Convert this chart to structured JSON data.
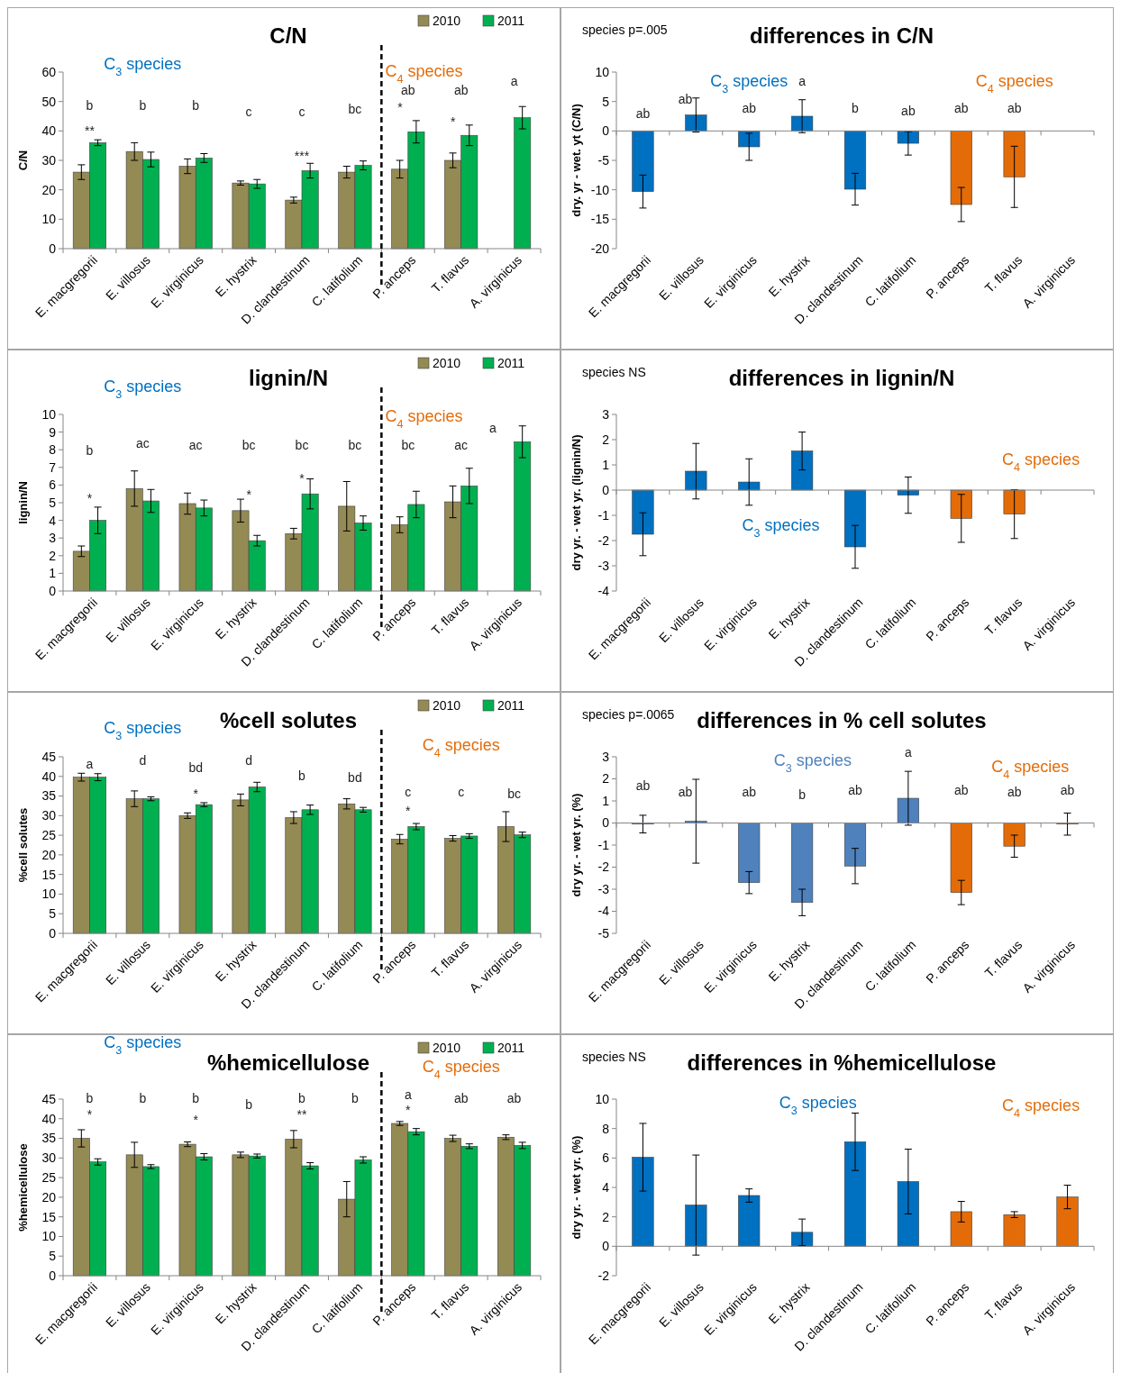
{
  "chart_data": [
    {
      "type": "bar",
      "title": "C/N",
      "ylabel": "C/N",
      "legend": "top right",
      "categories": [
        "E. macgregorii",
        "E. villosus",
        "E. virginicus",
        "E. hystrix",
        "D. clandestinum",
        "C. latifolium",
        "P. anceps",
        "T. flavus",
        "A. virginicus"
      ],
      "ylim": [
        0,
        60
      ],
      "yticks": [
        0,
        10,
        20,
        30,
        40,
        50,
        60
      ],
      "series": [
        {
          "name": "2010",
          "color": "#948a54",
          "values": [
            26,
            33,
            28,
            22.3,
            16.5,
            26,
            27,
            30,
            null
          ],
          "errors": [
            2.5,
            3,
            2.5,
            0.7,
            1,
            2,
            3,
            2.5,
            null
          ]
        },
        {
          "name": "2011",
          "color": "#00b050",
          "values": [
            36,
            30.3,
            30.8,
            22,
            26.5,
            28.3,
            39.7,
            38.5,
            44.5
          ],
          "errors": [
            1,
            2.5,
            1.5,
            1.5,
            2.5,
            1.5,
            3.8,
            3.5,
            3.8
          ]
        }
      ],
      "annotations": [
        "C$_{3}$ species",
        "C$_{4}$ species",
        "b",
        "b",
        "b",
        "c",
        "c",
        "bc",
        "ab",
        "ab",
        "a",
        "**",
        "***",
        "*",
        "*"
      ]
    },
    {
      "type": "bar",
      "title": "differences in C/N",
      "ylabel": "dry. yr - wet. yt (C/N)",
      "categories": [
        "E. macgregorii",
        "E. villosus",
        "E. virginicus",
        "E. hystrix",
        "D. clandestinum",
        "C. latifolium",
        "P. anceps",
        "T. flavus",
        "A. virginicus"
      ],
      "ylim": [
        -20,
        10
      ],
      "yticks": [
        -20,
        -15,
        -10,
        -5,
        0,
        5,
        10
      ],
      "series": [
        {
          "colors": [
            "#0070c0",
            "#0070c0",
            "#0070c0",
            "#0070c0",
            "#0070c0",
            "#0070c0",
            "#e36c09",
            "#e36c09",
            "#e36c09"
          ],
          "values": [
            -10.3,
            2.7,
            -2.7,
            2.5,
            -9.9,
            -2.1,
            -12.5,
            -7.8,
            null
          ],
          "errors": [
            2.8,
            2.9,
            2.3,
            2.8,
            2.7,
            2,
            2.9,
            5.2,
            null
          ]
        }
      ],
      "annotations": [
        "species p=.005",
        "C$_{3}$ species",
        "C$_{4}$ species",
        "ab",
        "ab",
        "ab",
        "a",
        "b",
        "ab",
        "ab",
        "ab"
      ]
    },
    {
      "type": "bar",
      "title": "lignin/N",
      "ylabel": "lignin/N",
      "legend": "top right",
      "categories": [
        "E. macgregorii",
        "E. villosus",
        "E. virginicus",
        "E. hystrix",
        "D. clandestinum",
        "C. latifolium",
        "P. anceps",
        "T. flavus",
        "A. virginicus"
      ],
      "ylim": [
        0,
        10
      ],
      "yticks": [
        0,
        1,
        2,
        3,
        4,
        5,
        6,
        7,
        8,
        9,
        10
      ],
      "series": [
        {
          "name": "2010",
          "color": "#948a54",
          "values": [
            2.25,
            5.8,
            4.95,
            4.55,
            3.25,
            4.8,
            3.75,
            5.05,
            null
          ],
          "errors": [
            0.3,
            1,
            0.6,
            0.65,
            0.3,
            1.4,
            0.45,
            0.9,
            null
          ]
        },
        {
          "name": "2011",
          "color": "#00b050",
          "values": [
            4,
            5.1,
            4.7,
            2.85,
            5.5,
            3.85,
            4.9,
            5.95,
            8.45
          ],
          "errors": [
            0.75,
            0.65,
            0.45,
            0.3,
            0.85,
            0.4,
            0.75,
            1,
            0.9
          ]
        }
      ],
      "annotations": [
        "C$_{3}$ species",
        "C$_{4}$ species",
        "b",
        "ac",
        "ac",
        "bc",
        "bc",
        "bc",
        "bc",
        "ac",
        "a",
        "*",
        "*",
        "*"
      ]
    },
    {
      "type": "bar",
      "title": "differences in lignin/N",
      "ylabel": "dry yr. - wet yr. (lignin/N)",
      "categories": [
        "E. macgregorii",
        "E. villosus",
        "E. virginicus",
        "E. hystrix",
        "D. clandestinum",
        "C. latifolium",
        "P. anceps",
        "T. flavus",
        "A. virginicus"
      ],
      "ylim": [
        -4,
        3
      ],
      "yticks": [
        -4,
        -3,
        -2,
        -1,
        0,
        1,
        2,
        3
      ],
      "series": [
        {
          "colors": [
            "#0070c0",
            "#0070c0",
            "#0070c0",
            "#0070c0",
            "#0070c0",
            "#0070c0",
            "#e36c09",
            "#e36c09",
            "#e36c09"
          ],
          "values": [
            -1.75,
            0.75,
            0.32,
            1.55,
            -2.25,
            -0.2,
            -1.12,
            -0.95,
            null
          ],
          "errors": [
            0.85,
            1.1,
            0.92,
            0.75,
            0.85,
            0.72,
            0.95,
            0.97,
            null
          ]
        }
      ],
      "annotations": [
        "species NS",
        "C$_{3}$ species",
        "C$_{4}$ species"
      ]
    },
    {
      "type": "bar",
      "title": "%cell solutes",
      "ylabel": "%cell solutes",
      "legend": "top right",
      "categories": [
        "E. macgregorii",
        "E. villosus",
        "E. virginicus",
        "E. hystrix",
        "D. clandestinum",
        "C. latifolium",
        "P. anceps",
        "T. flavus",
        "A. virginicus"
      ],
      "ylim": [
        0,
        45
      ],
      "yticks": [
        0,
        5,
        10,
        15,
        20,
        25,
        30,
        35,
        40,
        45
      ],
      "series": [
        {
          "name": "2010",
          "color": "#948a54",
          "values": [
            39.8,
            34.3,
            30,
            34,
            29.5,
            33,
            24,
            24.2,
            27.2
          ],
          "errors": [
            1,
            2,
            0.7,
            1.5,
            1.5,
            1.3,
            1.2,
            0.7,
            3.8
          ]
        },
        {
          "name": "2011",
          "color": "#00b050",
          "values": [
            39.8,
            34.3,
            32.8,
            37.3,
            31.5,
            31.5,
            27.2,
            24.8,
            25.1
          ],
          "errors": [
            0.9,
            0.5,
            0.5,
            1.2,
            1.2,
            0.6,
            0.8,
            0.6,
            0.7
          ]
        }
      ],
      "annotations": [
        "C$_{3}$ species",
        "C$_{4}$ species",
        "a",
        "d",
        "bd",
        "d",
        "b",
        "bd",
        "c",
        "c",
        "bc",
        "*",
        "*"
      ]
    },
    {
      "type": "bar",
      "title": "differences in % cell solutes",
      "ylabel": "dry yr. - wet yr. (%)",
      "categories": [
        "E. macgregorii",
        "E. villosus",
        "E. virginicus",
        "E. hystrix",
        "D. clandestinum",
        "C. latifolium",
        "P. anceps",
        "T. flavus",
        "A. virginicus"
      ],
      "ylim": [
        -5,
        3
      ],
      "yticks": [
        -5,
        -4,
        -3,
        -2,
        -1,
        0,
        1,
        2,
        3
      ],
      "series": [
        {
          "colors": [
            "#4f81bd",
            "#4f81bd",
            "#4f81bd",
            "#4f81bd",
            "#4f81bd",
            "#4f81bd",
            "#e36c09",
            "#e36c09",
            "#e36c09"
          ],
          "values": [
            -0.05,
            0.08,
            -2.7,
            -3.6,
            -1.95,
            1.12,
            -3.15,
            -1.05,
            -0.05
          ],
          "errors": [
            0.4,
            1.9,
            0.5,
            0.6,
            0.8,
            1.22,
            0.55,
            0.5,
            0.5
          ]
        }
      ],
      "annotations": [
        "species p=.0065",
        "C$_{3}$ species",
        "C$_{4}$ species",
        "ab",
        "ab",
        "ab",
        "b",
        "ab",
        "a",
        "ab",
        "ab",
        "ab"
      ]
    },
    {
      "type": "bar",
      "title": "%hemicellulose",
      "ylabel": "%hemicellulose",
      "legend": "top right",
      "categories": [
        "E. macgregorii",
        "E. villosus",
        "E. virginicus",
        "E. hystrix",
        "D. clandestinum",
        "C. latifolium",
        "P. anceps",
        "T. flavus",
        "A. virginicus"
      ],
      "ylim": [
        0,
        45
      ],
      "yticks": [
        0,
        5,
        10,
        15,
        20,
        25,
        30,
        35,
        40,
        45
      ],
      "series": [
        {
          "name": "2010",
          "color": "#948a54",
          "values": [
            35,
            30.8,
            33.5,
            30.8,
            34.8,
            19.5,
            38.8,
            35,
            35.3
          ],
          "errors": [
            2.2,
            3.2,
            0.6,
            0.7,
            2.2,
            4.5,
            0.5,
            0.8,
            0.6
          ]
        },
        {
          "name": "2011",
          "color": "#00b050",
          "values": [
            29,
            27.8,
            30.3,
            30.5,
            28,
            29.5,
            36.7,
            33,
            33.2
          ],
          "errors": [
            0.8,
            0.5,
            0.8,
            0.5,
            0.8,
            0.8,
            0.8,
            0.6,
            0.8
          ]
        }
      ],
      "annotations": [
        "C$_{3}$ species",
        "C$_{4}$ species",
        "b",
        "b",
        "b",
        "b",
        "b",
        "b",
        "a",
        "ab",
        "ab",
        "*",
        "*",
        "**",
        "*"
      ]
    },
    {
      "type": "bar",
      "title": "differences in %hemicellulose",
      "ylabel": "dry  yr. - wet yr. (%)",
      "categories": [
        "E. macgregorii",
        "E. villosus",
        "E. virginicus",
        "E. hystrix",
        "D. clandestinum",
        "C. latifolium",
        "P. anceps",
        "T. flavus",
        "A. virginicus"
      ],
      "ylim": [
        -2,
        10
      ],
      "yticks": [
        -2,
        0,
        2,
        4,
        6,
        8,
        10
      ],
      "series": [
        {
          "colors": [
            "#0070c0",
            "#0070c0",
            "#0070c0",
            "#0070c0",
            "#0070c0",
            "#0070c0",
            "#e36c09",
            "#e36c09",
            "#e36c09"
          ],
          "values": [
            6.05,
            2.8,
            3.45,
            0.95,
            7.1,
            4.4,
            2.35,
            2.15,
            3.35
          ],
          "errors": [
            2.3,
            3.4,
            0.45,
            0.9,
            1.95,
            2.2,
            0.7,
            0.2,
            0.8
          ]
        }
      ],
      "annotations": [
        "species NS",
        "C$_{3}$ species",
        "C$_{4}$ species"
      ]
    }
  ]
}
